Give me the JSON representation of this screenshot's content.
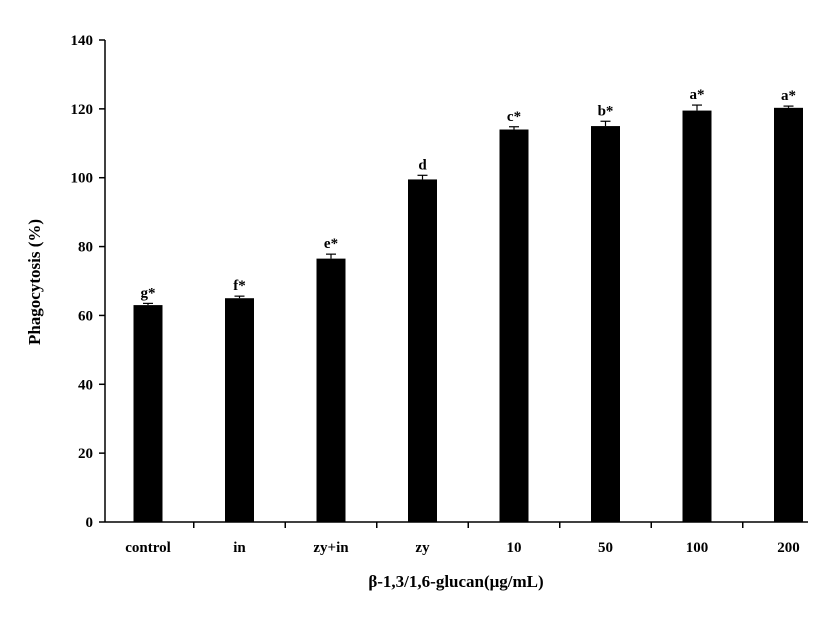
{
  "chart_data": {
    "type": "bar",
    "title": "",
    "xlabel": "β-1,3/1,6-glucan(μg/mL)",
    "ylabel": "Phagocytosis (%)",
    "ylim": [
      0,
      140
    ],
    "yticks": [
      0,
      20,
      40,
      60,
      80,
      100,
      120,
      140
    ],
    "categories": [
      "control",
      "in",
      "zy+in",
      "zy",
      "10",
      "50",
      "100",
      "200"
    ],
    "values": [
      63,
      65,
      76.5,
      99.5,
      114,
      115,
      119.5,
      120.3
    ],
    "errors": [
      0.5,
      0.6,
      1.3,
      1.2,
      0.8,
      1.4,
      1.6,
      0.5
    ],
    "significance_labels": [
      "g*",
      "f*",
      "e*",
      "d",
      "c*",
      "b*",
      "a*",
      "a*"
    ],
    "bar_color": "#000000",
    "grid": false,
    "legend": "none"
  }
}
